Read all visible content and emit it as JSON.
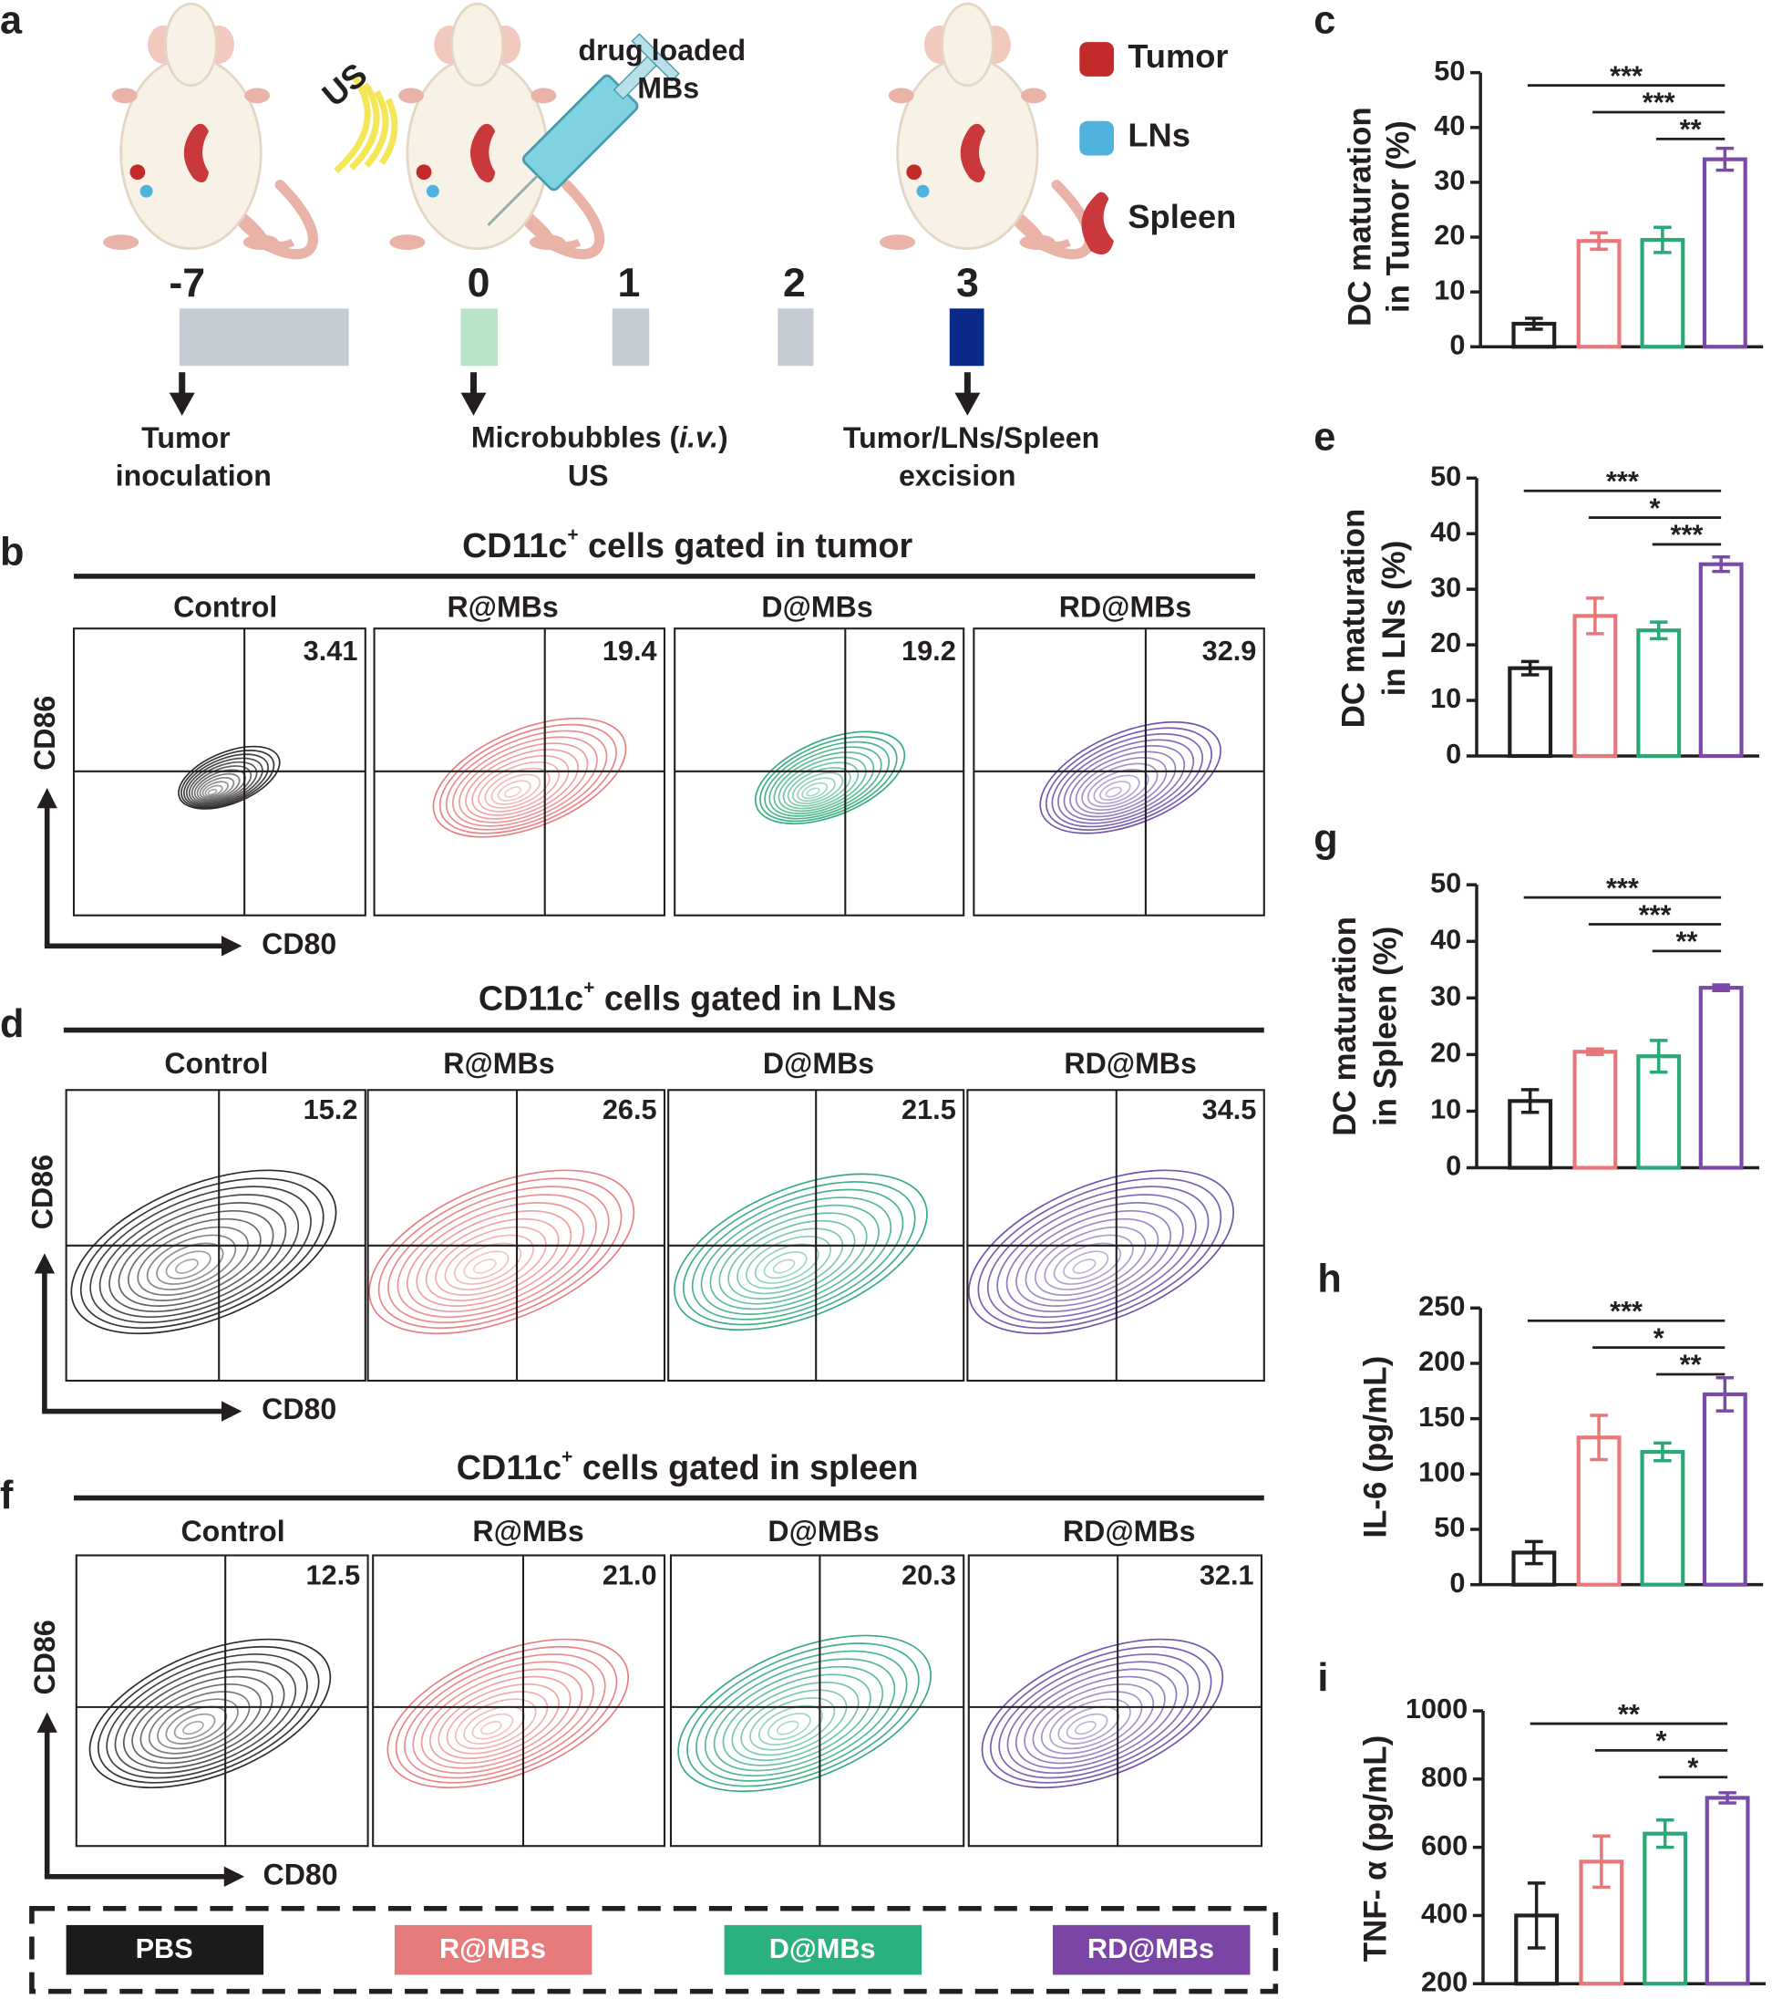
{
  "panel_labels": {
    "a": "a",
    "b": "b",
    "c": "c",
    "d": "d",
    "e": "e",
    "f": "f",
    "g": "g",
    "h": "h",
    "i": "i"
  },
  "schematic": {
    "us": "US",
    "drug": [
      "drug loaded",
      "MBs"
    ],
    "legend": [
      "Tumor",
      "LNs",
      "Spleen"
    ],
    "days": [
      "-7",
      "0",
      "1",
      "2",
      "3"
    ],
    "events": [
      [
        "Tumor",
        "inoculation"
      ],
      [
        [
          "Microbubbles (",
          "i.v.",
          ")"
        ],
        "US"
      ],
      [
        "Tumor/LNs/Spleen",
        "excision"
      ]
    ]
  },
  "flow": [
    {
      "title": [
        "CD11c",
        "+",
        " cells gated in tumor"
      ],
      "groups": [
        "Control",
        "R@MBs",
        "D@MBs",
        "RD@MBs"
      ],
      "quadrant_values": [
        "3.41",
        "19.4",
        "19.2",
        "32.9"
      ],
      "xlabel": "CD80",
      "ylabel": "CD86"
    },
    {
      "title": [
        "CD11c",
        "+",
        " cells gated in LNs"
      ],
      "groups": [
        "Control",
        "R@MBs",
        "D@MBs",
        "RD@MBs"
      ],
      "quadrant_values": [
        "15.2",
        "26.5",
        "21.5",
        "34.5"
      ],
      "xlabel": "CD80",
      "ylabel": "CD86"
    },
    {
      "title": [
        "CD11c",
        "+",
        " cells gated in spleen"
      ],
      "groups": [
        "Control",
        "R@MBs",
        "D@MBs",
        "RD@MBs"
      ],
      "quadrant_values": [
        "12.5",
        "21.0",
        "20.3",
        "32.1"
      ],
      "xlabel": "CD80",
      "ylabel": "CD86"
    }
  ],
  "legend": [
    "PBS",
    "R@MBs",
    "D@MBs",
    "RD@MBs"
  ],
  "legend_colors": [
    "#1c1a1b",
    "#e77b7b",
    "#2bb07f",
    "#7a45a5"
  ],
  "chart_data": [
    {
      "type": "bar",
      "ylabel": [
        "DC maturation",
        "in Tumor  (%)"
      ],
      "values": [
        4.2,
        19.3,
        19.5,
        34.2
      ],
      "errors": [
        1,
        1.5,
        2.3,
        2
      ],
      "colors": [
        "#231f20",
        "#e8777a",
        "#2aa876",
        "#7b4aa8"
      ],
      "ylim": [
        0,
        50
      ],
      "yticks": [
        0,
        10,
        20,
        30,
        40,
        50
      ],
      "significance": [
        "***",
        "***",
        "**"
      ]
    },
    {
      "type": "bar",
      "ylabel": [
        "DC maturation",
        "in LNs (%)"
      ],
      "values": [
        15.8,
        25.2,
        22.6,
        34.5
      ],
      "errors": [
        1.2,
        3.2,
        1.5,
        1.3
      ],
      "colors": [
        "#231f20",
        "#e8777a",
        "#2aa876",
        "#7b4aa8"
      ],
      "ylim": [
        0,
        50
      ],
      "yticks": [
        0,
        10,
        20,
        30,
        40,
        50
      ],
      "significance": [
        "***",
        "*",
        "***"
      ]
    },
    {
      "type": "bar",
      "ylabel": [
        "DC maturation",
        "in Spleen (%)"
      ],
      "values": [
        11.8,
        20.5,
        19.7,
        31.8
      ],
      "errors": [
        2,
        0.5,
        2.8,
        0.5
      ],
      "colors": [
        "#231f20",
        "#e8777a",
        "#2aa876",
        "#7b4aa8"
      ],
      "ylim": [
        0,
        50
      ],
      "yticks": [
        0,
        10,
        20,
        30,
        40,
        50
      ],
      "significance": [
        "***",
        "***",
        "**"
      ]
    },
    {
      "type": "bar",
      "ylabel": [
        "IL-6 (pg/mL)"
      ],
      "values": [
        29,
        133,
        120,
        172
      ],
      "errors": [
        10,
        20,
        8,
        15
      ],
      "colors": [
        "#231f20",
        "#e8777a",
        "#2aa876",
        "#7b4aa8"
      ],
      "ylim": [
        0,
        250
      ],
      "yticks": [
        0,
        50,
        100,
        150,
        200,
        250
      ],
      "significance": [
        "***",
        "*",
        "**"
      ]
    },
    {
      "type": "bar",
      "ylabel": [
        "TNF- α (pg/mL)"
      ],
      "values": [
        400,
        558,
        640,
        745
      ],
      "errors": [
        95,
        75,
        40,
        15
      ],
      "colors": [
        "#231f20",
        "#e8777a",
        "#2aa876",
        "#7b4aa8"
      ],
      "ylim": [
        200,
        1000
      ],
      "yticks": [
        200,
        400,
        600,
        800,
        1000
      ],
      "significance": [
        "**",
        "*",
        "*"
      ]
    }
  ]
}
